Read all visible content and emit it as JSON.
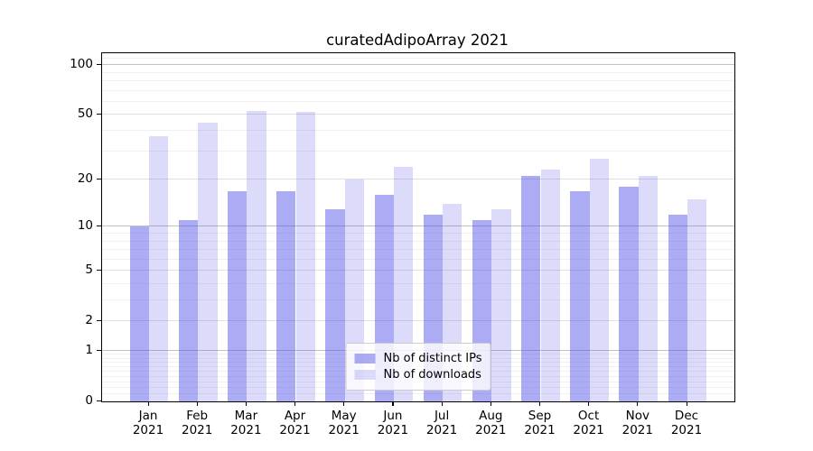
{
  "title": "curatedAdipoArray 2021",
  "chart_data": {
    "type": "bar",
    "title": "curatedAdipoArray 2021",
    "categories": [
      "Jan 2021",
      "Feb 2021",
      "Mar 2021",
      "Apr 2021",
      "May 2021",
      "Jun 2021",
      "Jul 2021",
      "Aug 2021",
      "Sep 2021",
      "Oct 2021",
      "Nov 2021",
      "Dec 2021"
    ],
    "x_tick_line1": [
      "Jan",
      "Feb",
      "Mar",
      "Apr",
      "May",
      "Jun",
      "Jul",
      "Aug",
      "Sep",
      "Oct",
      "Nov",
      "Dec"
    ],
    "x_tick_line2": [
      "2021",
      "2021",
      "2021",
      "2021",
      "2021",
      "2021",
      "2021",
      "2021",
      "2021",
      "2021",
      "2021",
      "2021"
    ],
    "series": [
      {
        "name": "Nb of distinct IPs",
        "values": [
          10,
          11,
          17,
          17,
          13,
          16,
          12,
          11,
          21,
          17,
          18,
          12
        ],
        "base_color": "#4646e6",
        "alpha": 0.45,
        "apparent_color": "#acacf4"
      },
      {
        "name": "Nb of downloads",
        "values": [
          37,
          45,
          53,
          52,
          20,
          24,
          14,
          13,
          23,
          27,
          21,
          15
        ],
        "base_color": "#4646e6",
        "alpha": 0.19,
        "apparent_color": "#dcdcfa"
      }
    ],
    "yscale": "log1p",
    "ylim": [
      0,
      118
    ],
    "y_ticks": [
      0,
      1,
      2,
      5,
      10,
      20,
      50,
      100
    ],
    "y_decade_gridlines": [
      1,
      10,
      100
    ],
    "y_major_gridlines": [
      2,
      5,
      20,
      50
    ],
    "y_minor_gridlines": [
      0.1,
      0.2,
      0.3,
      0.4,
      0.5,
      0.6,
      0.7,
      0.8,
      0.9,
      3,
      4,
      6,
      7,
      8,
      9,
      30,
      40,
      60,
      70,
      80,
      90,
      110
    ],
    "grid": true,
    "legend_position": "lower center",
    "style": {
      "grid_decade_color": "#c2c2c2",
      "grid_major_color": "#e0e0e0",
      "grid_minor_color": "#f0f0f0",
      "spine_color": "#000000",
      "text_color": "#000000",
      "background": "#ffffff"
    }
  },
  "legend": {
    "entries": [
      "Nb of distinct IPs",
      "Nb of downloads"
    ]
  }
}
